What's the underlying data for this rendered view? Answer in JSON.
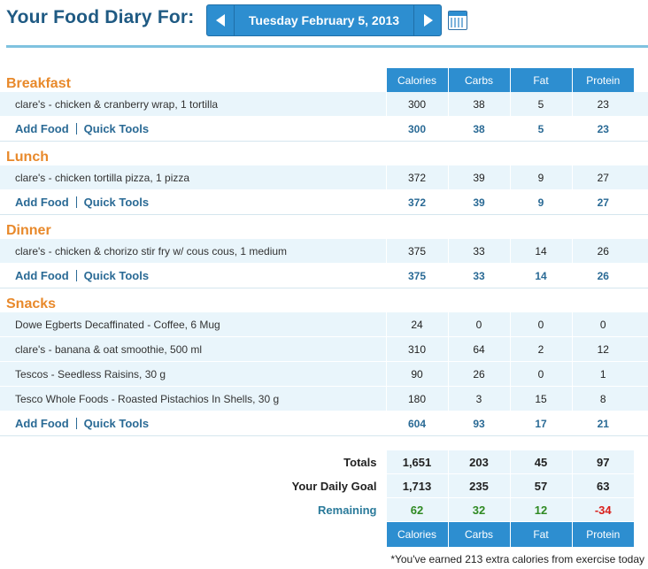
{
  "header": {
    "title": "Your Food Diary For:",
    "date": "Tuesday February 5, 2013"
  },
  "columns": [
    "Calories",
    "Carbs",
    "Fat",
    "Protein"
  ],
  "meals": [
    {
      "name": "Breakfast",
      "items": [
        {
          "food": "clare's - chicken & cranberry wrap, 1 tortilla",
          "calories": "300",
          "carbs": "38",
          "fat": "5",
          "protein": "23"
        }
      ],
      "totals": {
        "calories": "300",
        "carbs": "38",
        "fat": "5",
        "protein": "23"
      }
    },
    {
      "name": "Lunch",
      "items": [
        {
          "food": "clare's - chicken tortilla pizza, 1 pizza",
          "calories": "372",
          "carbs": "39",
          "fat": "9",
          "protein": "27"
        }
      ],
      "totals": {
        "calories": "372",
        "carbs": "39",
        "fat": "9",
        "protein": "27"
      }
    },
    {
      "name": "Dinner",
      "items": [
        {
          "food": "clare's - chicken & chorizo stir fry w/ cous cous, 1 medium",
          "calories": "375",
          "carbs": "33",
          "fat": "14",
          "protein": "26"
        }
      ],
      "totals": {
        "calories": "375",
        "carbs": "33",
        "fat": "14",
        "protein": "26"
      }
    },
    {
      "name": "Snacks",
      "items": [
        {
          "food": "Dowe Egberts Decaffinated - Coffee, 6 Mug",
          "calories": "24",
          "carbs": "0",
          "fat": "0",
          "protein": "0"
        },
        {
          "food": "clare's - banana & oat smoothie, 500 ml",
          "calories": "310",
          "carbs": "64",
          "fat": "2",
          "protein": "12"
        },
        {
          "food": "Tescos - Seedless Raisins, 30 g",
          "calories": "90",
          "carbs": "26",
          "fat": "0",
          "protein": "1"
        },
        {
          "food": "Tesco Whole Foods - Roasted Pistachios In Shells, 30 g",
          "calories": "180",
          "carbs": "3",
          "fat": "15",
          "protein": "8"
        }
      ],
      "totals": {
        "calories": "604",
        "carbs": "93",
        "fat": "17",
        "protein": "21"
      }
    }
  ],
  "actions": {
    "add_food": "Add Food",
    "quick_tools": "Quick Tools"
  },
  "summary": {
    "totals_label": "Totals",
    "totals": {
      "calories": "1,651",
      "carbs": "203",
      "fat": "45",
      "protein": "97"
    },
    "goal_label": "Your Daily Goal",
    "goal": {
      "calories": "1,713",
      "carbs": "235",
      "fat": "57",
      "protein": "63"
    },
    "remaining_label": "Remaining",
    "remaining": {
      "calories": "62",
      "carbs": "32",
      "fat": "12",
      "protein": "-34"
    }
  },
  "note": "*You've earned 213 extra calories from exercise today",
  "colors": {
    "accent": "#2d8ed0",
    "meal_heading": "#e8892b",
    "positive": "#2f8a23",
    "negative": "#d9201c"
  }
}
